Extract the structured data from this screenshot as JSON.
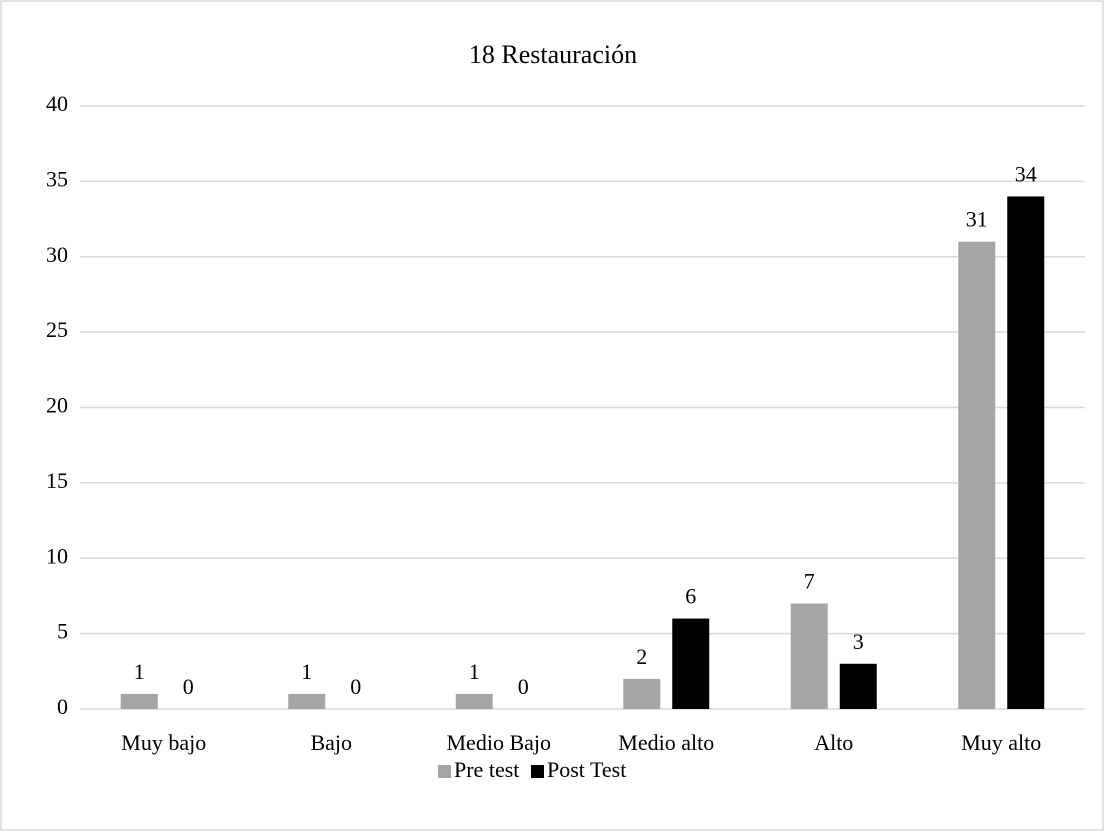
{
  "chart_data": {
    "type": "bar",
    "title": "18 Restauración",
    "categories": [
      "Muy bajo",
      "Bajo",
      "Medio Bajo",
      "Medio alto",
      "Alto",
      "Muy alto"
    ],
    "series": [
      {
        "name": "Pre test",
        "color": "#a5a5a5",
        "values": [
          1,
          1,
          1,
          2,
          7,
          31
        ]
      },
      {
        "name": "Post Test",
        "color": "#000000",
        "values": [
          0,
          0,
          0,
          6,
          3,
          34
        ]
      }
    ],
    "ylim": [
      0,
      40
    ],
    "yticks": [
      0,
      5,
      10,
      15,
      20,
      25,
      30,
      35,
      40
    ],
    "grid": true,
    "legend": "bottom"
  }
}
